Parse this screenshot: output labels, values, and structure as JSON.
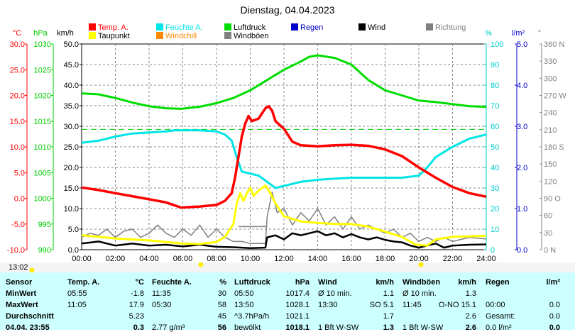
{
  "title": "Dienstag, 04.04.2023",
  "legend": [
    {
      "label": "Temp. A.",
      "color": "#ff0000"
    },
    {
      "label": "Feuchte A.",
      "color": "#00e5e5"
    },
    {
      "label": "Luftdruck",
      "color": "#00dd00"
    },
    {
      "label": "Regen",
      "color": "#0000cc"
    },
    {
      "label": "Wind",
      "color": "#000000"
    },
    {
      "label": "Richtung",
      "color": "#808080"
    },
    {
      "label": "Taupunkt",
      "color": "#ffff00"
    },
    {
      "label": "Windchill",
      "color": "#ff8800"
    },
    {
      "label": "Windböen",
      "color": "#808080"
    }
  ],
  "axes": {
    "temp": {
      "unit": "°C",
      "ticks": [
        "30.0",
        "25.0",
        "20.0",
        "15.0",
        "10.0",
        "5.0",
        "0.0",
        "-5.0",
        "-10.0"
      ]
    },
    "pressure": {
      "unit": "hPa",
      "ticks": [
        "1030",
        "1025",
        "1020",
        "1015",
        "1010",
        "1005",
        "1000",
        "995",
        "990"
      ]
    },
    "wind": {
      "unit": "km/h",
      "ticks": [
        "50.0",
        "45.0",
        "40.0",
        "35.0",
        "30.0",
        "25.0",
        "20.0",
        "15.0",
        "10.0",
        "5.0",
        "0.0"
      ]
    },
    "humidity": {
      "unit": "%",
      "ticks": [
        "100",
        "90",
        "80",
        "70",
        "60",
        "50",
        "40",
        "30",
        "20",
        "10",
        "0"
      ]
    },
    "rain": {
      "unit": "l/m²",
      "ticks": [
        "5.0",
        "4.0",
        "3.0",
        "2.0",
        "1.0",
        "0.0"
      ]
    },
    "direction": {
      "unit": "°",
      "ticks": [
        "360 N",
        "330",
        "300",
        "270 W",
        "240",
        "210",
        "180 S",
        "150",
        "120",
        "90 O",
        "60",
        "30",
        "0   N"
      ]
    },
    "time": {
      "ticks": [
        "00:00",
        "02:00",
        "04:00",
        "06:00",
        "08:00",
        "10:00",
        "12:00",
        "14:00",
        "16:00",
        "18:00",
        "20:00",
        "22:00",
        "24:00"
      ]
    }
  },
  "timestamp": "13:02",
  "chart_data": {
    "type": "line",
    "xlabel": "",
    "x_unit": "hour",
    "ylim_temp": [
      -10,
      30
    ],
    "ylim_pressure": [
      990,
      1030
    ],
    "ylim_wind": [
      0,
      50
    ],
    "ylim_humidity": [
      0,
      100
    ],
    "series": [
      {
        "name": "Temp. A.",
        "axis": "temp",
        "color": "#ff0000",
        "points": [
          [
            0,
            2.1
          ],
          [
            1,
            1.6
          ],
          [
            2,
            1
          ],
          [
            3,
            0.4
          ],
          [
            4,
            -0.2
          ],
          [
            5,
            -0.8
          ],
          [
            5.9,
            -1.8
          ],
          [
            6.5,
            -1.7
          ],
          [
            7,
            -1.6
          ],
          [
            8,
            -1.3
          ],
          [
            8.5,
            -0.5
          ],
          [
            8.9,
            1
          ],
          [
            9.1,
            4
          ],
          [
            9.3,
            8
          ],
          [
            9.5,
            12
          ],
          [
            9.7,
            14.5
          ],
          [
            9.9,
            16
          ],
          [
            10.1,
            15
          ],
          [
            10.5,
            15.5
          ],
          [
            10.9,
            17.5
          ],
          [
            11.1,
            17.9
          ],
          [
            11.3,
            17
          ],
          [
            11.5,
            15
          ],
          [
            12,
            13.5
          ],
          [
            12.5,
            11
          ],
          [
            13,
            10.3
          ],
          [
            14,
            10.1
          ],
          [
            15,
            10.3
          ],
          [
            16,
            10.4
          ],
          [
            17,
            10.2
          ],
          [
            18,
            9.5
          ],
          [
            19,
            8.2
          ],
          [
            20,
            6
          ],
          [
            21,
            4
          ],
          [
            22,
            2.2
          ],
          [
            23,
            1
          ],
          [
            24,
            0.3
          ]
        ]
      },
      {
        "name": "Feuchte A.",
        "axis": "humidity",
        "color": "#00e5e5",
        "points": [
          [
            0,
            52
          ],
          [
            1,
            53
          ],
          [
            2,
            55
          ],
          [
            3,
            56.5
          ],
          [
            4,
            57
          ],
          [
            5,
            57.5
          ],
          [
            5.5,
            58
          ],
          [
            6,
            58
          ],
          [
            7,
            58
          ],
          [
            8,
            57.5
          ],
          [
            8.5,
            56
          ],
          [
            8.9,
            53
          ],
          [
            9.2,
            45
          ],
          [
            9.5,
            38
          ],
          [
            10,
            37
          ],
          [
            10.5,
            36
          ],
          [
            11,
            33
          ],
          [
            11.5,
            30
          ],
          [
            12,
            31
          ],
          [
            13,
            33
          ],
          [
            14,
            34
          ],
          [
            15,
            34.5
          ],
          [
            16,
            35
          ],
          [
            17,
            35
          ],
          [
            18,
            35
          ],
          [
            19,
            35
          ],
          [
            20,
            36
          ],
          [
            20.5,
            40
          ],
          [
            21,
            45
          ],
          [
            22,
            50
          ],
          [
            23,
            54
          ],
          [
            24,
            56
          ]
        ]
      },
      {
        "name": "Luftdruck",
        "axis": "pressure",
        "color": "#00dd00",
        "points": [
          [
            0,
            1020.4
          ],
          [
            1,
            1020.2
          ],
          [
            2,
            1019.5
          ],
          [
            3,
            1018.6
          ],
          [
            4,
            1017.9
          ],
          [
            5,
            1017.5
          ],
          [
            5.9,
            1017.4
          ],
          [
            7,
            1017.8
          ],
          [
            8,
            1018.5
          ],
          [
            9,
            1019.5
          ],
          [
            10,
            1021
          ],
          [
            11,
            1023
          ],
          [
            12,
            1025
          ],
          [
            13,
            1026.6
          ],
          [
            13.5,
            1027.5
          ],
          [
            14,
            1027.8
          ],
          [
            15,
            1027.3
          ],
          [
            16,
            1026
          ],
          [
            17,
            1023
          ],
          [
            18,
            1021
          ],
          [
            19,
            1020
          ],
          [
            20,
            1019
          ],
          [
            21,
            1018.7
          ],
          [
            22,
            1018.3
          ],
          [
            23,
            1017.9
          ],
          [
            24,
            1017.8
          ]
        ]
      },
      {
        "name": "Taupunkt",
        "axis": "temp",
        "color": "#ffff00",
        "points": [
          [
            0,
            -7.2
          ],
          [
            1,
            -7.5
          ],
          [
            2,
            -7.8
          ],
          [
            3,
            -8
          ],
          [
            4,
            -8.2
          ],
          [
            5,
            -8.5
          ],
          [
            6,
            -8.8
          ],
          [
            7,
            -8.9
          ],
          [
            8,
            -8.5
          ],
          [
            8.5,
            -7.5
          ],
          [
            9,
            -5
          ],
          [
            9.2,
            -1
          ],
          [
            9.4,
            1
          ],
          [
            9.6,
            -0.5
          ],
          [
            9.8,
            1
          ],
          [
            10,
            2
          ],
          [
            10.2,
            0.5
          ],
          [
            10.5,
            1.5
          ],
          [
            10.9,
            2.5
          ],
          [
            11.2,
            1
          ],
          [
            11.5,
            -1
          ],
          [
            12,
            -3.5
          ],
          [
            13,
            -4.5
          ],
          [
            14,
            -4.8
          ],
          [
            15,
            -5
          ],
          [
            16,
            -5
          ],
          [
            17,
            -5.5
          ],
          [
            18,
            -6.5
          ],
          [
            19,
            -7.5
          ],
          [
            19.8,
            -9
          ],
          [
            20.5,
            -9.2
          ],
          [
            21,
            -8
          ],
          [
            22,
            -7.5
          ],
          [
            24,
            -7.3
          ]
        ]
      },
      {
        "name": "Wind",
        "axis": "wind",
        "color": "#000000",
        "points": [
          [
            0,
            1.5
          ],
          [
            1,
            2
          ],
          [
            2,
            1
          ],
          [
            3,
            1.5
          ],
          [
            4,
            1
          ],
          [
            5,
            1.2
          ],
          [
            6,
            0.8
          ],
          [
            7,
            1.2
          ],
          [
            8,
            0.7
          ],
          [
            9,
            0.6
          ],
          [
            10,
            0.4
          ],
          [
            10.9,
            0.5
          ],
          [
            11,
            3
          ],
          [
            11.5,
            3.5
          ],
          [
            12,
            2.5
          ],
          [
            12.5,
            4
          ],
          [
            13,
            3.5
          ],
          [
            13.5,
            4
          ],
          [
            14,
            4.5
          ],
          [
            14.5,
            3.5
          ],
          [
            15,
            4
          ],
          [
            15.5,
            3
          ],
          [
            16,
            3.8
          ],
          [
            16.5,
            3
          ],
          [
            17,
            2.5
          ],
          [
            17.5,
            3
          ],
          [
            18,
            2.4
          ],
          [
            18.5,
            2
          ],
          [
            19,
            1.8
          ],
          [
            19.5,
            1
          ],
          [
            20,
            0.5
          ],
          [
            20.5,
            1
          ],
          [
            21,
            1.5
          ],
          [
            21.5,
            0.5
          ],
          [
            22,
            1
          ],
          [
            23,
            1.2
          ],
          [
            24,
            1.3
          ]
        ]
      },
      {
        "name": "Windböen",
        "axis": "wind",
        "color": "#808080",
        "points": [
          [
            0,
            3
          ],
          [
            0.5,
            4
          ],
          [
            1,
            3.5
          ],
          [
            1.5,
            5
          ],
          [
            2,
            3
          ],
          [
            2.5,
            4.5
          ],
          [
            3,
            5
          ],
          [
            3.5,
            3
          ],
          [
            4,
            4
          ],
          [
            4.5,
            6
          ],
          [
            5,
            4
          ],
          [
            5.5,
            3
          ],
          [
            6,
            5
          ],
          [
            6.5,
            3.5
          ],
          [
            7,
            6
          ],
          [
            7.5,
            3
          ],
          [
            8,
            5
          ],
          [
            8.5,
            3
          ],
          [
            9,
            2
          ],
          [
            9.5,
            2
          ],
          [
            10,
            1.5
          ],
          [
            10.9,
            1.5
          ],
          [
            11,
            8
          ],
          [
            11.3,
            14
          ],
          [
            11.6,
            9
          ],
          [
            12,
            10
          ],
          [
            12.5,
            6
          ],
          [
            13,
            9
          ],
          [
            13.5,
            7
          ],
          [
            14,
            10
          ],
          [
            14.5,
            6
          ],
          [
            15,
            8
          ],
          [
            15.5,
            5
          ],
          [
            16,
            8
          ],
          [
            16.5,
            5
          ],
          [
            17,
            6
          ],
          [
            17.5,
            5
          ],
          [
            18,
            4
          ],
          [
            18.5,
            5
          ],
          [
            19,
            3
          ],
          [
            19.5,
            4
          ],
          [
            20,
            2
          ],
          [
            20.5,
            3
          ],
          [
            21,
            2
          ],
          [
            21.5,
            3
          ],
          [
            22,
            2
          ],
          [
            23,
            3
          ],
          [
            24,
            2.6
          ]
        ]
      }
    ],
    "reference_line": {
      "axis": "temp",
      "value": 13.4,
      "color": "#00cc00",
      "style": "dashed"
    },
    "annotation": {
      "label": "",
      "from_hour": 9.3,
      "to_hour": 11,
      "value": -5.5,
      "axis": "temp",
      "color": "#808080"
    }
  },
  "stats": {
    "sensor": {
      "header": "Sensor",
      "rows": [
        "MinWert",
        "MaxWert",
        "Durchschnitt",
        "04.04. 23:55"
      ]
    },
    "temp": {
      "header": "Temp. A.",
      "unit": "°C",
      "rows": [
        [
          "05:55",
          "-1.8"
        ],
        [
          "11:05",
          "17.9"
        ],
        [
          "",
          "5.23"
        ],
        [
          "",
          "0.3"
        ]
      ]
    },
    "humidity": {
      "header": "Feuchte A.",
      "unit": "%",
      "rows": [
        [
          "11:35",
          "30"
        ],
        [
          "05:30",
          "58"
        ],
        [
          "",
          "45"
        ],
        [
          "2.77 g/m³",
          "56"
        ]
      ]
    },
    "pressure": {
      "header": "Luftdruck",
      "unit": "hPa",
      "rows": [
        [
          "05:50",
          "1017.4"
        ],
        [
          "13:50",
          "1028.1"
        ],
        [
          "^3.7hPa/h",
          "1021.1"
        ],
        [
          "bewölkt",
          "1018.1"
        ]
      ]
    },
    "wind": {
      "header": "Wind",
      "unit": "km/h",
      "rows": [
        [
          "Ø 10 min.",
          "1.1"
        ],
        [
          "13:30",
          "SO 5.1"
        ],
        [
          "",
          "1.7"
        ],
        [
          "1 Bft W-SW",
          "1.3"
        ]
      ]
    },
    "gusts": {
      "header": "Windböen",
      "unit": "km/h",
      "rows": [
        [
          "Ø 10 min.",
          "1.3"
        ],
        [
          "11:45",
          "O-NO 15.1"
        ],
        [
          "",
          "2.6"
        ],
        [
          "1 Bft W-SW",
          "2.6"
        ]
      ]
    },
    "rain": {
      "header": "Regen",
      "unit": "l/m²",
      "rows": [
        [
          "",
          ""
        ],
        [
          "00:00",
          "0.0"
        ],
        [
          "Gesamt:",
          "0.0"
        ],
        [
          "0.0 l/m²",
          "0.0"
        ]
      ]
    }
  }
}
